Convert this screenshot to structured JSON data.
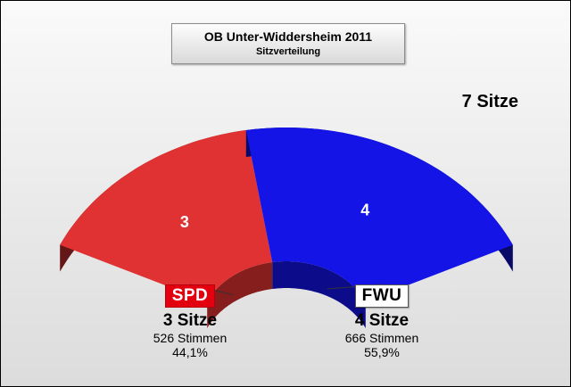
{
  "title": "OB Unter-Widdersheim 2011",
  "subtitle": "Sitzverteilung",
  "total_label": "7 Sitze",
  "chart_data": {
    "type": "pie",
    "variant": "3d-semicircle-arc",
    "title": "OB Unter-Widdersheim 2011",
    "subtitle": "Sitzverteilung",
    "total_seats": 7,
    "series": [
      {
        "name": "SPD",
        "seats": 3,
        "value_label": "3",
        "seats_label": "3 Sitze",
        "votes_label": "526 Stimmen",
        "percent_label": "44,1%",
        "votes": 526,
        "percent": 44.1,
        "color": "#e03232"
      },
      {
        "name": "FWU",
        "seats": 4,
        "value_label": "4",
        "seats_label": "4 Sitze",
        "votes_label": "666 Stimmen",
        "percent_label": "55,9%",
        "votes": 666,
        "percent": 55.9,
        "color": "#1414e6"
      }
    ]
  }
}
